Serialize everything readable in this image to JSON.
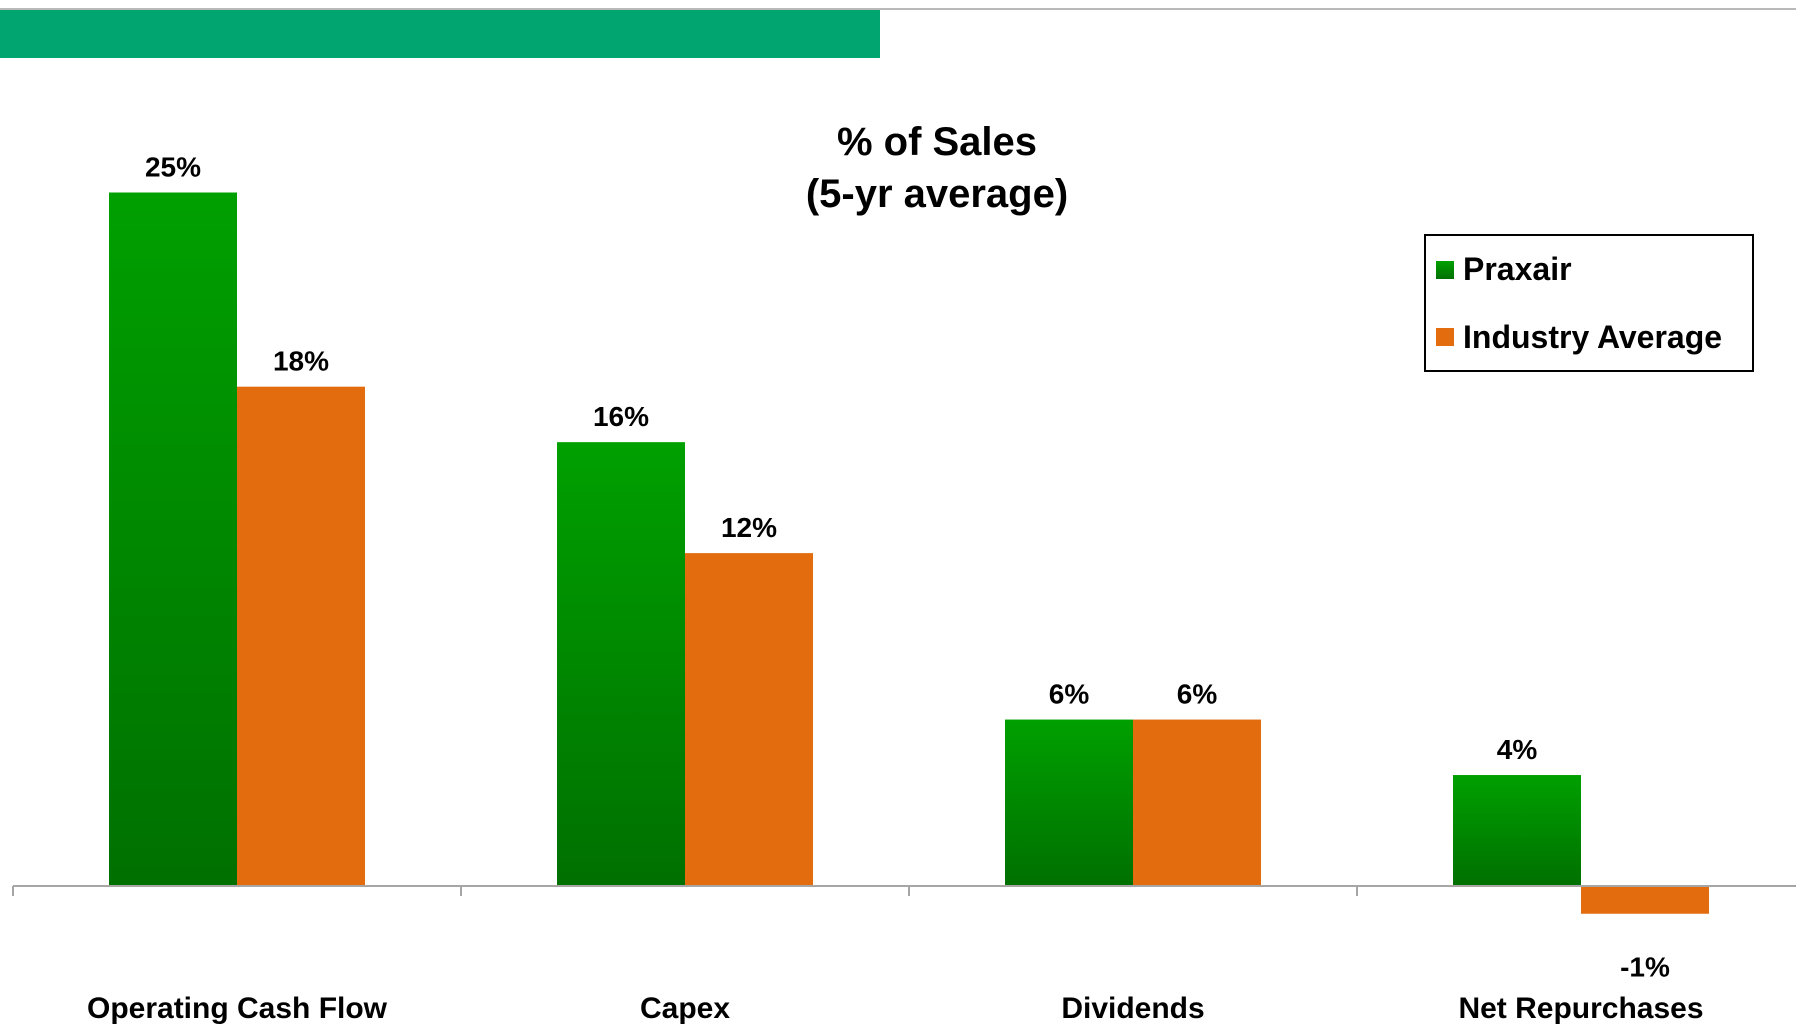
{
  "chart_data": {
    "type": "bar",
    "title": [
      "% of  Sales",
      "(5-yr average)"
    ],
    "categories": [
      "Operating Cash Flow",
      "Capex",
      "Dividends",
      "Net Repurchases"
    ],
    "series": [
      {
        "name": "Praxair",
        "values": [
          25,
          16,
          6,
          4
        ],
        "labels": [
          "25%",
          "16%",
          "6%",
          "4%"
        ]
      },
      {
        "name": "Industry Average",
        "values": [
          18,
          12,
          6,
          -1
        ],
        "labels": [
          "18%",
          "12%",
          "6%",
          "-1%"
        ]
      }
    ],
    "ylim": [
      -1,
      25
    ],
    "grid": false,
    "legend_position": "top-right",
    "colors": {
      "praxair_top": "#00a000",
      "praxair_bottom": "#007000",
      "industry": "#e36c0f",
      "header_band": "#00a56f",
      "axis": "#a6a6a6"
    }
  }
}
